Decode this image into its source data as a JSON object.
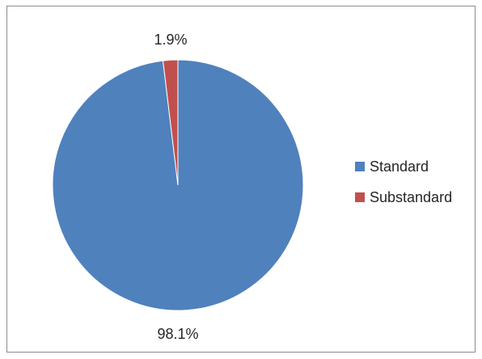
{
  "chart_data": {
    "type": "pie",
    "slices": [
      {
        "label": "Standard",
        "value": 98.1,
        "display": "98.1%",
        "color": "#4f81bd"
      },
      {
        "label": "Substandard",
        "value": 1.9,
        "display": "1.9%",
        "color": "#c0504d"
      }
    ],
    "legend_position": "right"
  }
}
